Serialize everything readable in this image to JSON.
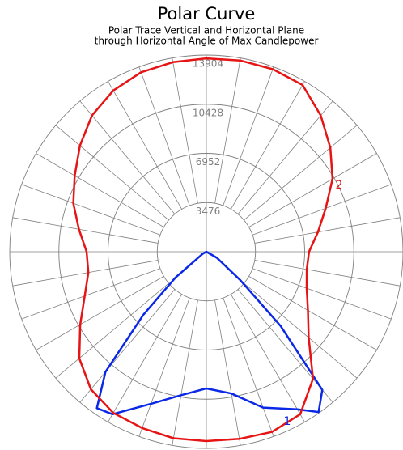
{
  "chart_data": {
    "type": "polar",
    "title": "Polar Curve",
    "subtitle": [
      "Polar Trace Vertical and Horizontal Plane",
      "through Horizontal Angle of Max Candlepower"
    ],
    "ylim": [
      0,
      13904
    ],
    "yticks": [
      3476,
      6952,
      10428,
      13904
    ],
    "grid": true,
    "series": [
      {
        "name": "1",
        "color": "#0a28e6",
        "x": [
          -60,
          -50,
          -45,
          -40,
          -35,
          -30,
          -20,
          -10,
          0,
          10,
          20,
          30,
          35,
          40,
          45,
          50,
          60
        ],
        "values": [
          300,
          2860,
          6290,
          11100,
          13500,
          13270,
          11440,
          10300,
          9670,
          10180,
          11730,
          12870,
          13840,
          12760,
          7440,
          3150,
          860
        ]
      },
      {
        "name": "2",
        "color": "#e61414",
        "x": [
          -170,
          -160,
          -150,
          -140,
          -130,
          -120,
          -110,
          -100,
          -90,
          -80,
          -70,
          -60,
          -50,
          -40,
          -30,
          -20,
          -10,
          0,
          10,
          20,
          30,
          40,
          50,
          60,
          70,
          80,
          90,
          100,
          110,
          120,
          130,
          140,
          150,
          160,
          170,
          180
        ],
        "values": [
          13610,
          13500,
          13160,
          12580,
          11670,
          10750,
          10010,
          9150,
          8470,
          8470,
          9150,
          10300,
          11730,
          12700,
          13160,
          13270,
          13390,
          13390,
          13440,
          13560,
          13270,
          11730,
          9440,
          8290,
          7550,
          7210,
          7260,
          8010,
          8980,
          10300,
          11440,
          12580,
          13610,
          13730,
          13730,
          13670
        ]
      }
    ]
  }
}
